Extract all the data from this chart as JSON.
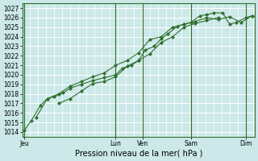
{
  "xlabel": "Pression niveau de la mer( hPa )",
  "bg_color": "#cce8e8",
  "line_color": "#2d6e2d",
  "ylim": [
    1013.5,
    1027.5
  ],
  "yticks": [
    1014,
    1015,
    1016,
    1017,
    1018,
    1019,
    1020,
    1021,
    1022,
    1023,
    1024,
    1025,
    1026,
    1027
  ],
  "xlim": [
    -0.1,
    10.1
  ],
  "day_ticks": [
    0.0,
    4.0,
    5.2,
    7.3,
    9.7
  ],
  "day_labels": [
    "Jeu",
    "Lun",
    "Ven",
    "Sam",
    "Dim"
  ],
  "vlines": [
    0.0,
    4.0,
    5.2,
    7.3,
    9.7
  ],
  "series1_x": [
    0.0,
    0.3,
    0.7,
    1.0,
    1.3,
    1.7,
    2.0,
    2.5,
    3.0,
    3.5,
    4.0,
    4.3,
    4.7,
    5.0,
    5.3,
    5.7,
    6.0,
    6.3,
    6.7,
    7.0,
    7.3,
    7.7,
    8.0,
    8.3,
    8.7,
    9.0,
    9.3,
    9.7,
    10.0
  ],
  "series1_y": [
    1014.2,
    1015.2,
    1016.8,
    1017.5,
    1017.7,
    1018.1,
    1018.6,
    1019.0,
    1019.4,
    1019.7,
    1020.0,
    1020.7,
    1021.0,
    1021.5,
    1022.6,
    1023.0,
    1023.8,
    1024.3,
    1025.1,
    1025.3,
    1025.5,
    1026.2,
    1026.3,
    1026.5,
    1026.5,
    1025.3,
    1025.5,
    1026.0,
    1026.2
  ],
  "series2_x": [
    0.5,
    1.0,
    1.5,
    2.0,
    2.5,
    3.0,
    3.5,
    4.0,
    4.5,
    5.0,
    5.5,
    6.0,
    6.5,
    7.0,
    7.5,
    8.0,
    8.5,
    9.0,
    9.5,
    10.0
  ],
  "series2_y": [
    1015.5,
    1017.5,
    1018.0,
    1018.8,
    1019.3,
    1019.8,
    1020.2,
    1021.0,
    1021.5,
    1022.3,
    1023.7,
    1024.0,
    1025.0,
    1025.3,
    1025.6,
    1026.0,
    1025.8,
    1026.1,
    1025.5,
    1026.2
  ],
  "series3_x": [
    1.5,
    2.0,
    2.5,
    3.0,
    3.5,
    4.0,
    4.5,
    5.0,
    5.5,
    6.0,
    6.5,
    7.0,
    7.5,
    8.0,
    8.5
  ],
  "series3_y": [
    1017.0,
    1017.5,
    1018.3,
    1019.1,
    1019.3,
    1019.8,
    1020.9,
    1021.5,
    1022.2,
    1023.4,
    1024.0,
    1025.0,
    1025.4,
    1025.7,
    1026.0
  ],
  "tick_fontsize": 5.5,
  "label_fontsize": 7,
  "markersize": 2.2
}
